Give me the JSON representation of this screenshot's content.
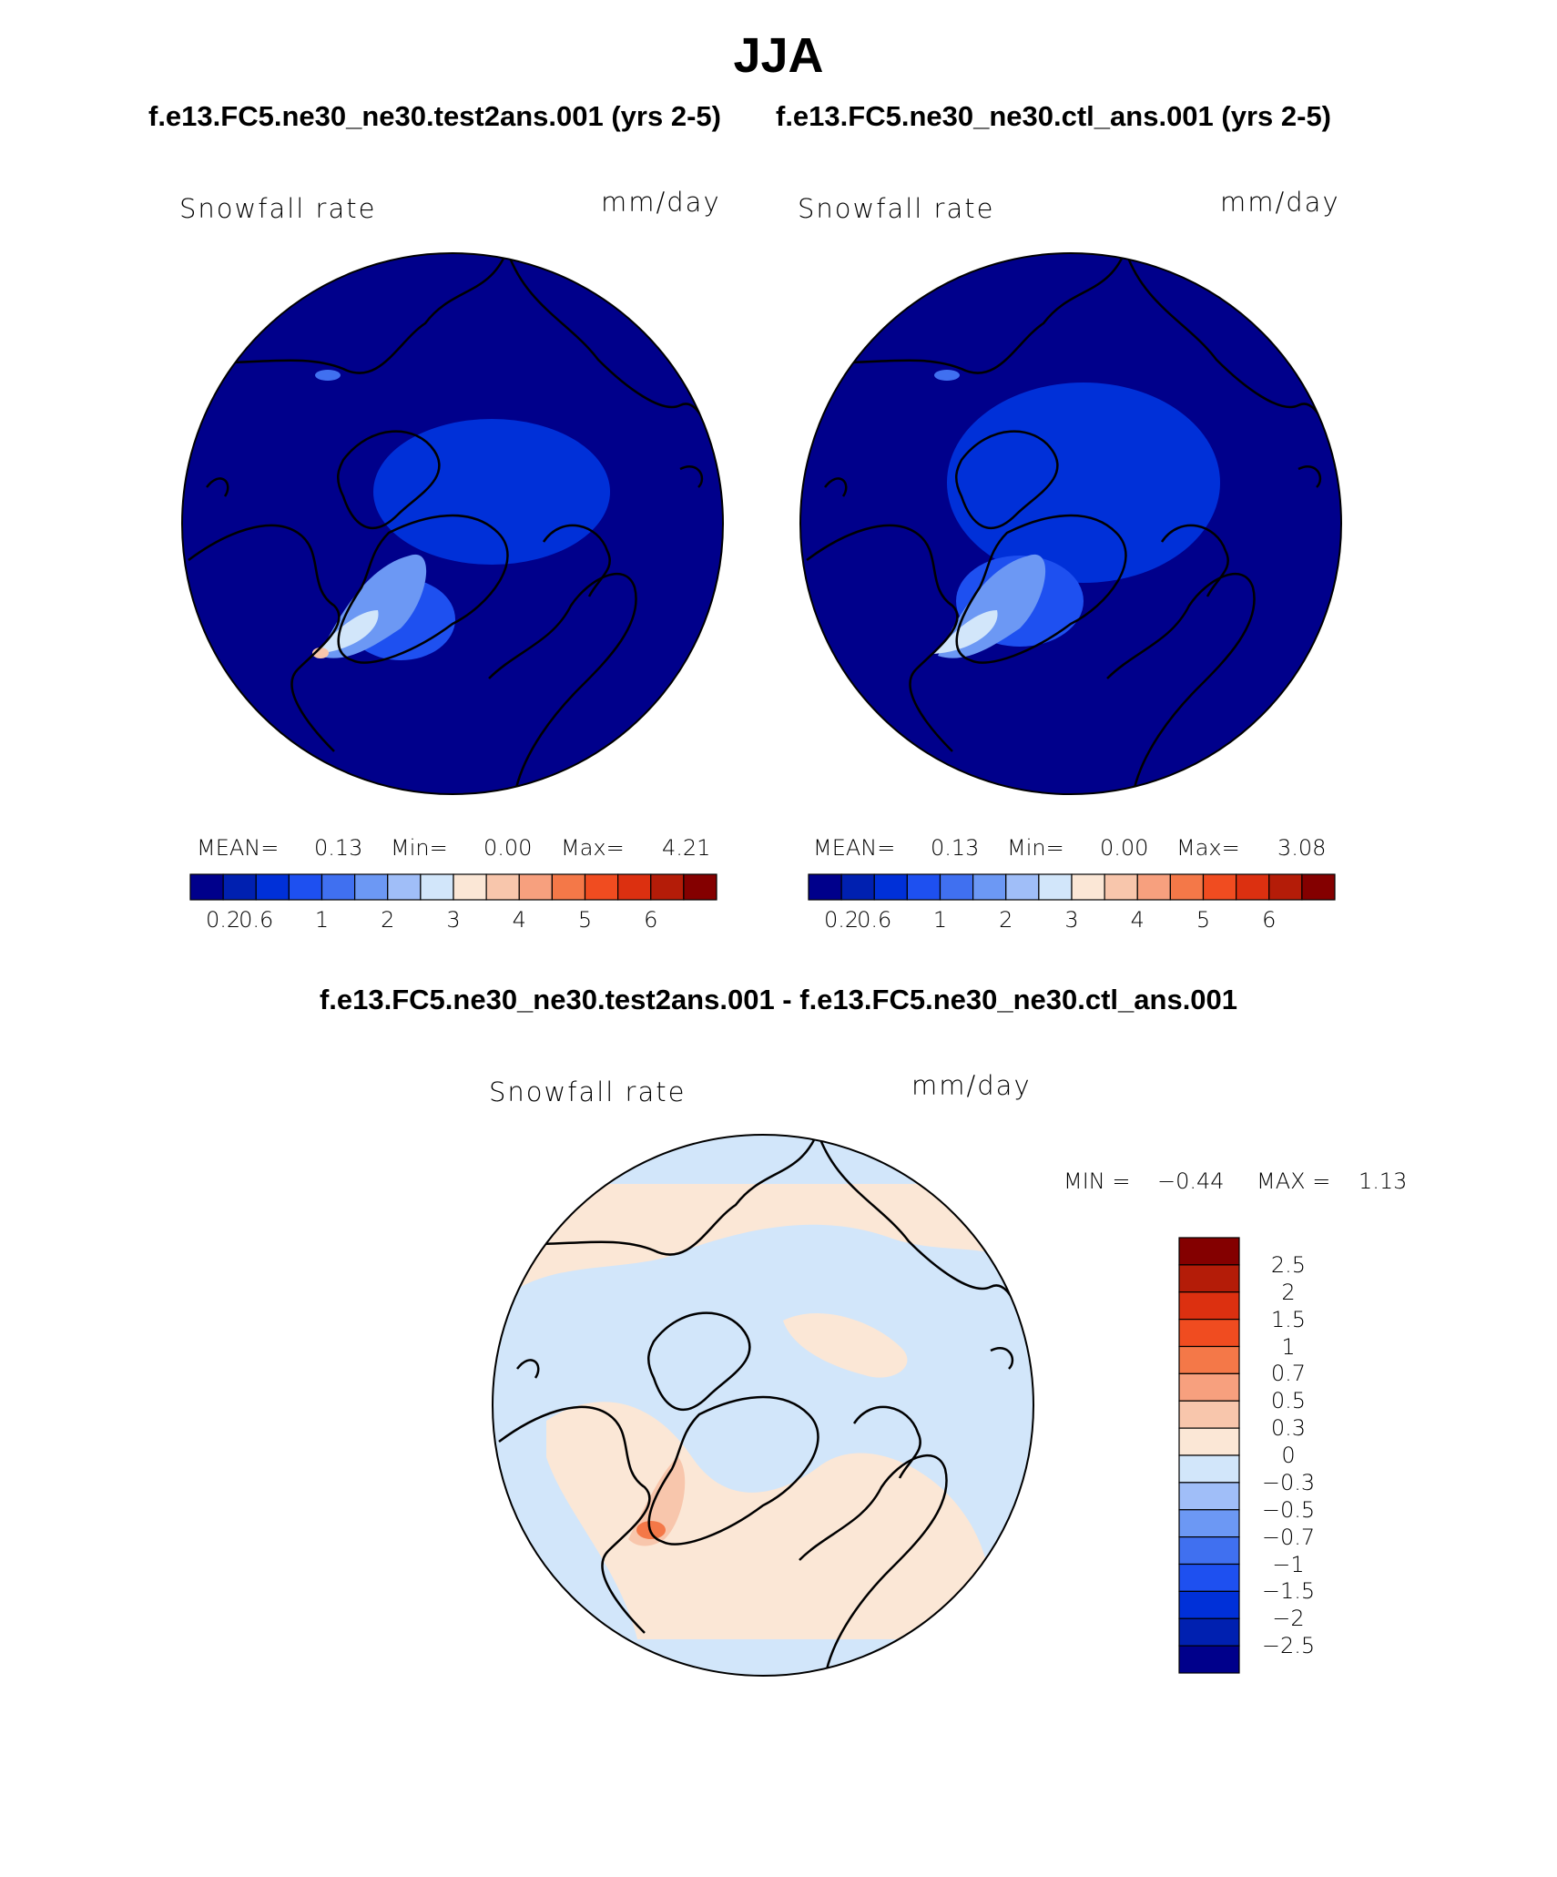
{
  "figure": {
    "season": "JJA",
    "left_case_title": "f.e13.FC5.ne30_ne30.test2ans.001 (yrs 2-5)",
    "right_case_title": "f.e13.FC5.ne30_ne30.ctl_ans.001 (yrs 2-5)",
    "diff_title": "f.e13.FC5.ne30_ne30.test2ans.001 - f.e13.FC5.ne30_ne30.ctl_ans.001"
  },
  "panels": [
    {
      "variable": "Snowfall rate",
      "units": "mm/day",
      "mean_label": "MEAN=",
      "mean_value": "0.13",
      "min_label": "Min=",
      "min_value": "0.00",
      "max_label": "Max=",
      "max_value": "4.21"
    },
    {
      "variable": "Snowfall rate",
      "units": "mm/day",
      "mean_label": "MEAN=",
      "mean_value": "0.13",
      "min_label": "Min=",
      "min_value": "0.00",
      "max_label": "Max=",
      "max_value": "3.08"
    },
    {
      "variable": "Snowfall rate",
      "units": "mm/day",
      "min_label": "MIN =",
      "min_value": "−0.44",
      "max_label": "MAX =",
      "max_value": "1.13"
    }
  ],
  "colorbar_abs": {
    "colors": [
      "#00008b",
      "#0020b0",
      "#0030d8",
      "#1e50f0",
      "#4070f0",
      "#6c98f4",
      "#a0bef8",
      "#d2e6fa",
      "#fbe7d6",
      "#f8c6ac",
      "#f7a07e",
      "#f47848",
      "#f04c20",
      "#dc3010",
      "#b41c08",
      "#840000"
    ],
    "tick_labels": [
      "0.2",
      "0.6",
      "1",
      "2",
      "3",
      "4",
      "5",
      "6"
    ],
    "tick_after_segment": [
      1,
      2,
      4,
      6,
      8,
      10,
      12,
      14
    ]
  },
  "colorbar_diff": {
    "colors_top_to_bottom": [
      "#840000",
      "#b41c08",
      "#dc3010",
      "#f04c20",
      "#f47848",
      "#f7a07e",
      "#f8c6ac",
      "#fbe7d6",
      "#d2e6fa",
      "#a0bef8",
      "#6c98f4",
      "#4070f0",
      "#1e50f0",
      "#0030d8",
      "#0020b0",
      "#00008b"
    ],
    "tick_labels_top_to_bottom": [
      "2.5",
      "2",
      "1.5",
      "1",
      "0.7",
      "0.5",
      "0.3",
      "0",
      "−0.3",
      "−0.5",
      "−0.7",
      "−1",
      "−1.5",
      "−2",
      "−2.5"
    ]
  },
  "map_colors": {
    "abs_background": "#00008b",
    "diff_negative": "#d2e6fa",
    "diff_positive": "#fbe7d6"
  }
}
